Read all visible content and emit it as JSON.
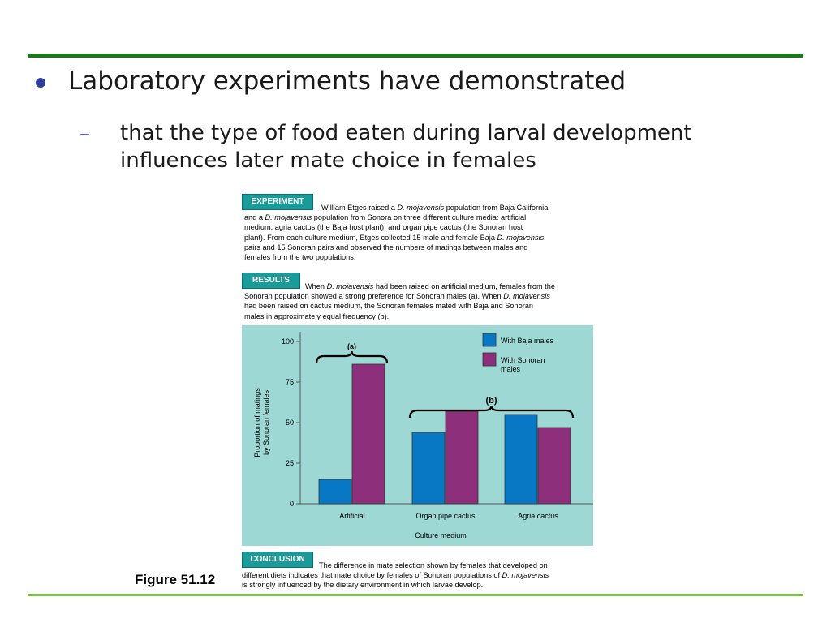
{
  "slide": {
    "bullet": "Laboratory experiments have demonstrated",
    "sub_line1": "that the type of food eaten during larval development",
    "sub_line2": "influences later mate choice in females",
    "dash": "–"
  },
  "figure": {
    "experiment_label": "EXPERIMENT",
    "experiment_lines": [
      [
        "William Etges raised a ",
        "D. mojavensis",
        " population from Baja California"
      ],
      [
        "and a ",
        "D. mojavensis",
        " population from Sonora on three different culture media: artificial"
      ],
      [
        "medium, agria cactus (the Baja host plant), and organ pipe cactus (the Sonoran host"
      ],
      [
        "plant). From each culture medium, Etges collected 15 male and female Baja ",
        "D. mojavensis"
      ],
      [
        "pairs and 15 Sonoran pairs and observed the numbers of matings between males and"
      ],
      [
        "females from the two populations."
      ]
    ],
    "results_label": "RESULTS",
    "results_lines": [
      [
        "When ",
        "D. mojavensis",
        " had been raised on artificial medium, females from the"
      ],
      [
        "Sonoran population showed a strong preference for Sonoran males (a). When ",
        "D. mojavensis"
      ],
      [
        "had been raised on cactus medium, the Sonoran females mated with Baja and Sonoran"
      ],
      [
        "males in approximately equal frequency (b)."
      ]
    ],
    "conclusion_label": "CONCLUSION",
    "conclusion_lines": [
      [
        "The difference in mate selection shown by females that developed on"
      ],
      [
        "different diets indicates that mate choice by females of Sonoran populations of ",
        "D. mojavensis"
      ],
      [
        "is strongly influenced by the dietary environment in which larvae develop."
      ]
    ],
    "figure_label": "Figure 51.12"
  },
  "chart_data": {
    "type": "bar",
    "categories": [
      "Artificial",
      "Organ pipe cactus",
      "Agria cactus"
    ],
    "series": [
      {
        "name": "With Baja males",
        "values": [
          15,
          44,
          55
        ],
        "color": "#0878c4"
      },
      {
        "name": "With Sonoran males",
        "values": [
          86,
          57,
          47
        ],
        "color": "#8e2f7c"
      }
    ],
    "legend_lines": [
      [
        "With Baja males"
      ],
      [
        "With Sonoran",
        "males"
      ]
    ],
    "ylabel_lines": [
      "Proportion of  matings",
      "by Sonoran females"
    ],
    "xlabel": "Culture medium",
    "ylim": [
      0,
      100
    ],
    "yticks": [
      0,
      25,
      50,
      75,
      100
    ],
    "annotations": [
      {
        "label": "(a)",
        "from_category": 0,
        "to_category": 0
      },
      {
        "label": "(b)",
        "from_category": 1,
        "to_category": 2
      }
    ],
    "legend_position": "top-right"
  }
}
